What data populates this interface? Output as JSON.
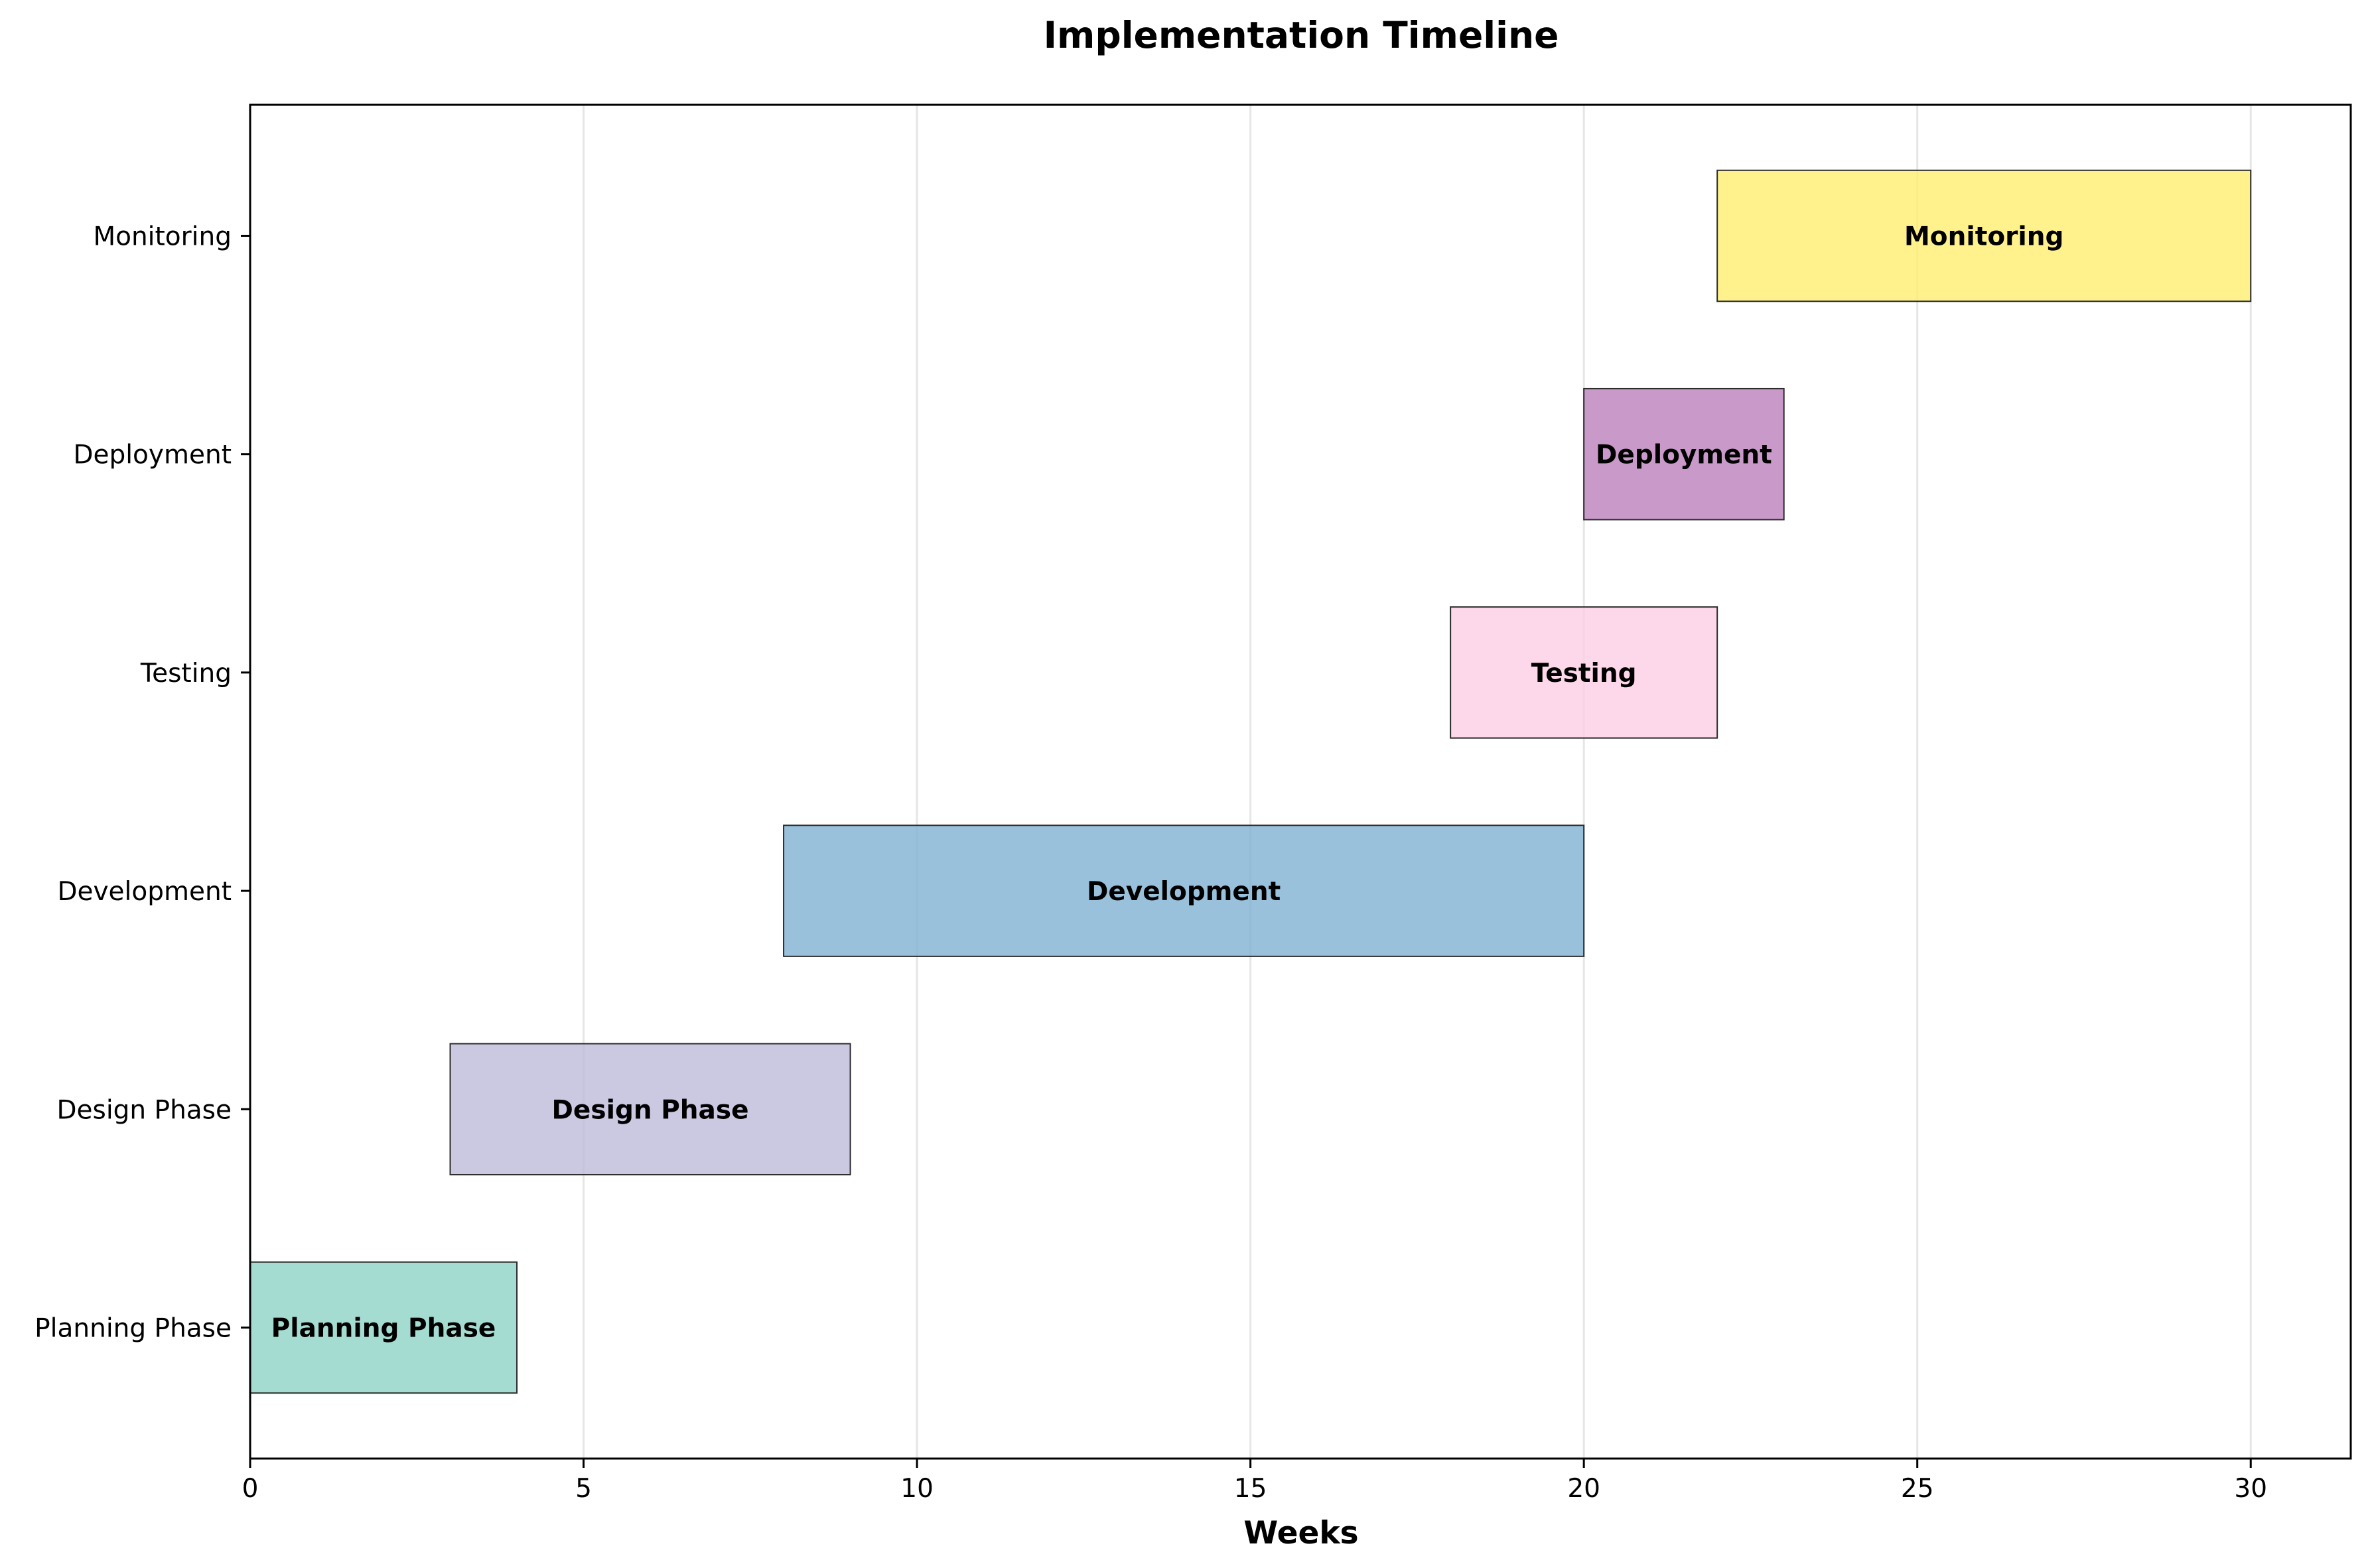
{
  "chart_data": {
    "type": "bar",
    "orientation": "horizontal",
    "title": "Implementation Timeline",
    "xlabel": "Weeks",
    "ylabel": "",
    "xlim": [
      0,
      31.5
    ],
    "xticks": [
      0,
      5,
      10,
      15,
      20,
      25,
      30
    ],
    "grid": "x-axis only",
    "tasks": [
      {
        "name": "Planning Phase",
        "start": 0,
        "end": 4,
        "color": "#8dd3c7"
      },
      {
        "name": "Design Phase",
        "start": 3,
        "end": 9,
        "color": "#bebada"
      },
      {
        "name": "Development",
        "start": 8,
        "end": 20,
        "color": "#80b1d3"
      },
      {
        "name": "Testing",
        "start": 18,
        "end": 22,
        "color": "#fccde5"
      },
      {
        "name": "Deployment",
        "start": 20,
        "end": 23,
        "color": "#bc80bd"
      },
      {
        "name": "Monitoring",
        "start": 22,
        "end": 30,
        "color": "#ffed6f"
      }
    ]
  }
}
